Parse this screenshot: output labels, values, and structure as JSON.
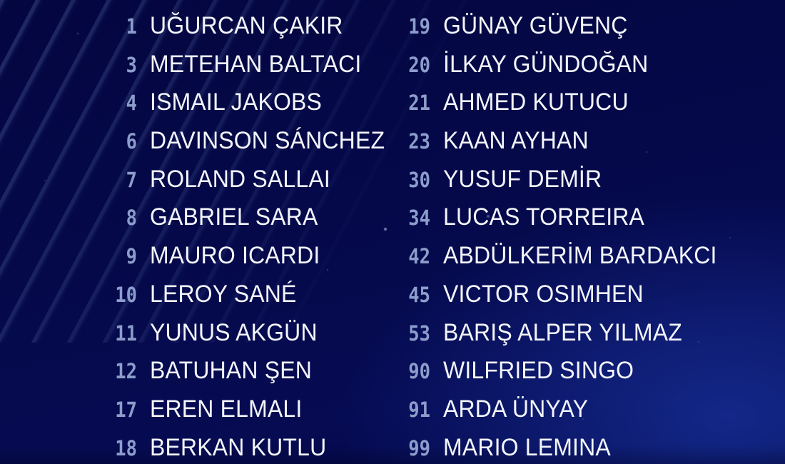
{
  "colors": {
    "background_top": "#03063f",
    "background_mid": "#05094a",
    "background_bottom": "#02074a",
    "glow_accent": "#2346c3",
    "stripe_accent": "#8caaeb",
    "number_text": "#8c9dcb",
    "name_text": "#f3f5fb"
  },
  "squad": {
    "columns": [
      {
        "players": [
          {
            "number": "1",
            "name": "UĞURCAN ÇAKIR"
          },
          {
            "number": "3",
            "name": "METEHAN BALTACI"
          },
          {
            "number": "4",
            "name": "ISMAIL JAKOBS"
          },
          {
            "number": "6",
            "name": "DAVINSON SÁNCHEZ"
          },
          {
            "number": "7",
            "name": "ROLAND SALLAI"
          },
          {
            "number": "8",
            "name": "GABRIEL SARA"
          },
          {
            "number": "9",
            "name": "MAURO ICARDI"
          },
          {
            "number": "10",
            "name": "LEROY SANÉ"
          },
          {
            "number": "11",
            "name": "YUNUS AKGÜN"
          },
          {
            "number": "12",
            "name": "BATUHAN ŞEN"
          },
          {
            "number": "17",
            "name": "EREN ELMALI"
          },
          {
            "number": "18",
            "name": "BERKAN KUTLU"
          }
        ]
      },
      {
        "players": [
          {
            "number": "19",
            "name": "GÜNAY GÜVENÇ"
          },
          {
            "number": "20",
            "name": "İLKAY GÜNDOĞAN"
          },
          {
            "number": "21",
            "name": "AHMED KUTUCU"
          },
          {
            "number": "23",
            "name": "KAAN AYHAN"
          },
          {
            "number": "30",
            "name": "YUSUF DEMİR"
          },
          {
            "number": "34",
            "name": "LUCAS TORREIRA"
          },
          {
            "number": "42",
            "name": "ABDÜLKERİM BARDAKCI"
          },
          {
            "number": "45",
            "name": "VICTOR OSIMHEN"
          },
          {
            "number": "53",
            "name": "BARIŞ ALPER YILMAZ"
          },
          {
            "number": "90",
            "name": "WILFRIED SINGO"
          },
          {
            "number": "91",
            "name": "ARDA ÜNYAY"
          },
          {
            "number": "99",
            "name": "MARIO LEMINA"
          }
        ]
      }
    ]
  }
}
